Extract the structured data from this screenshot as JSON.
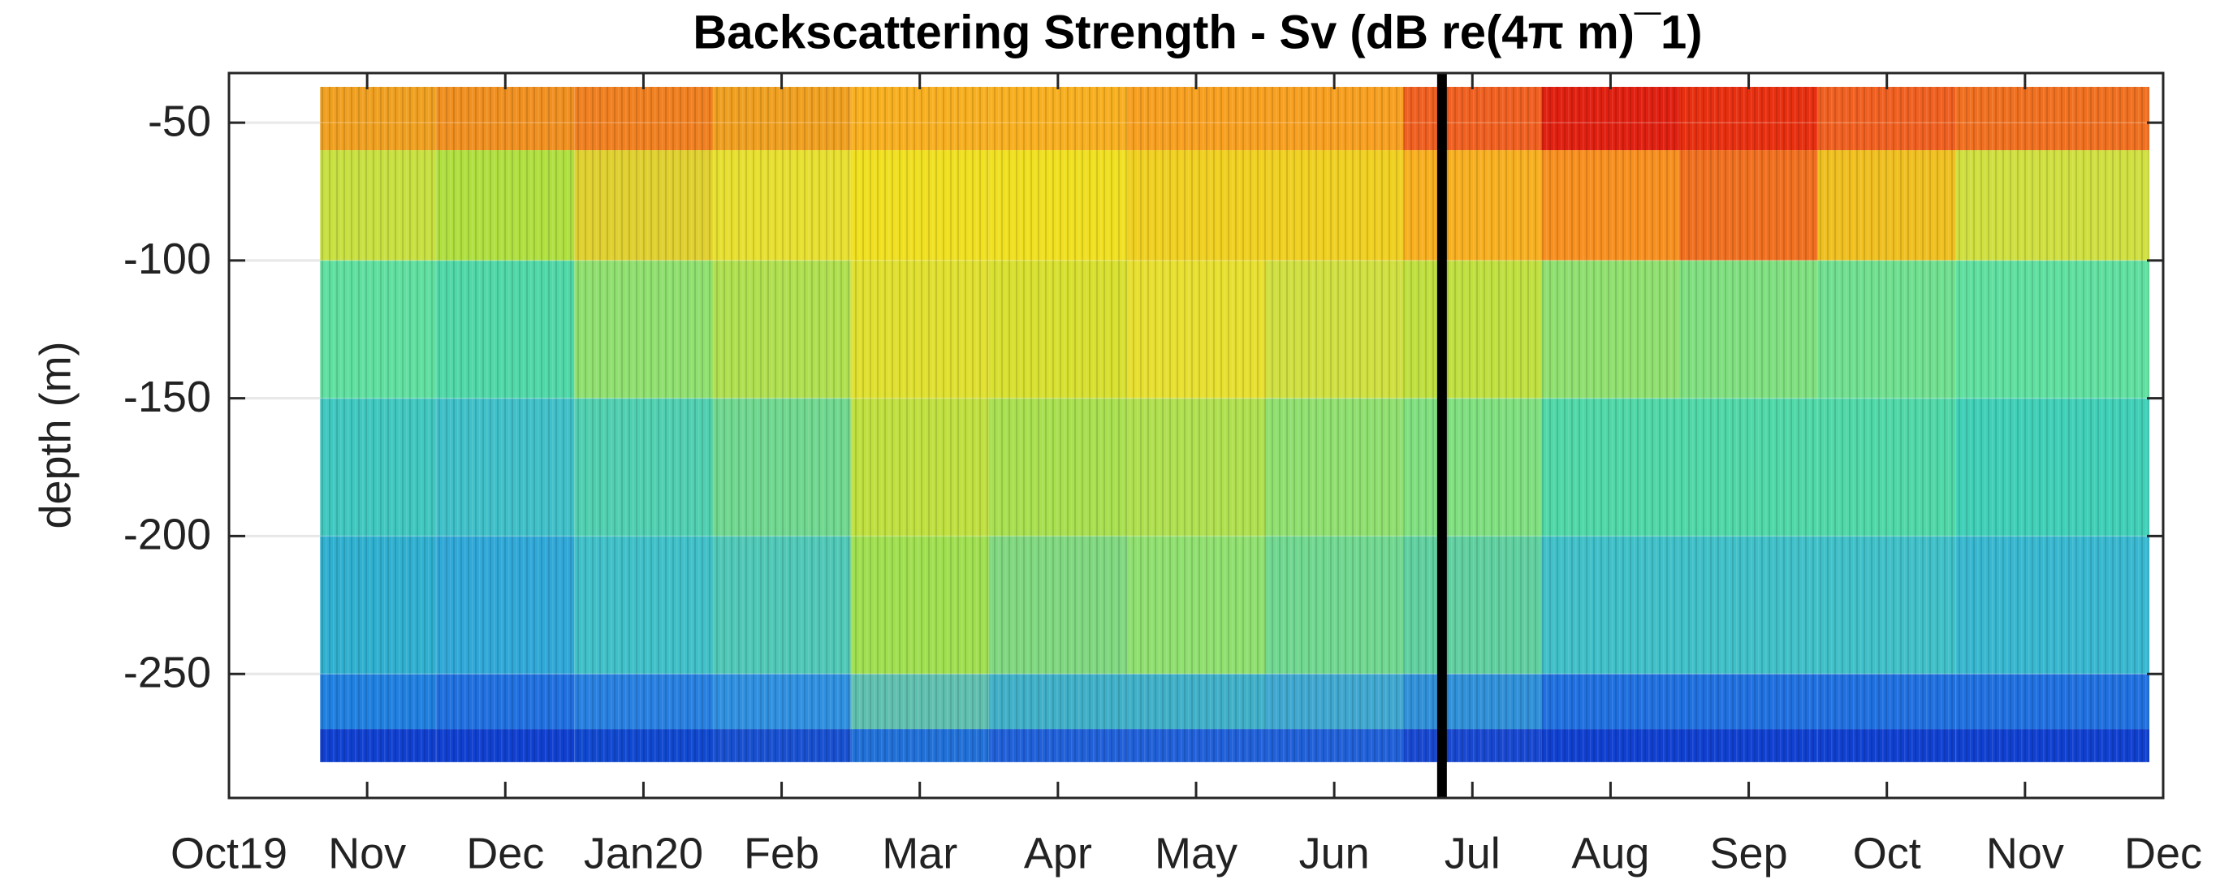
{
  "chart_data": {
    "type": "heatmap",
    "title": "Backscattering Strength - Sv (dB re(4π m)¯1)",
    "ylabel": "depth (m)",
    "xlim": [
      0,
      14
    ],
    "xticks": [
      {
        "value": 0,
        "label": "Oct19"
      },
      {
        "value": 1,
        "label": "Nov"
      },
      {
        "value": 2,
        "label": "Dec"
      },
      {
        "value": 3,
        "label": "Jan20"
      },
      {
        "value": 4,
        "label": "Feb"
      },
      {
        "value": 5,
        "label": "Mar"
      },
      {
        "value": 6,
        "label": "Apr"
      },
      {
        "value": 7,
        "label": "May"
      },
      {
        "value": 8,
        "label": "Jun"
      },
      {
        "value": 9,
        "label": "Jul"
      },
      {
        "value": 10,
        "label": "Aug"
      },
      {
        "value": 11,
        "label": "Sep"
      },
      {
        "value": 12,
        "label": "Oct"
      },
      {
        "value": 13,
        "label": "Nov"
      },
      {
        "value": 14,
        "label": "Dec"
      }
    ],
    "ylim": [
      -295,
      -32
    ],
    "yticks": [
      -250,
      -200,
      -150,
      -100,
      -50
    ],
    "grid": true,
    "x_edges": [
      0.66,
      1.5,
      2.5,
      3.5,
      4.5,
      5.5,
      6.5,
      7.5,
      8.5,
      9.5,
      10.5,
      11.5,
      12.5,
      13.9
    ],
    "y_edges": [
      -37,
      -60,
      -100,
      -150,
      -200,
      -250,
      -270,
      -282
    ],
    "cell_colors": [
      [
        "#f0a020",
        "#c8e040",
        "#60e0a0",
        "#40c8c0",
        "#30b0d0",
        "#2080e0",
        "#1040d0"
      ],
      [
        "#f09020",
        "#b0e040",
        "#50d8a8",
        "#40c0c8",
        "#30a8d8",
        "#2070e0",
        "#1040d0"
      ],
      [
        "#f08020",
        "#e0d030",
        "#90e070",
        "#50d0b0",
        "#40c0c8",
        "#2880e0",
        "#1048d0"
      ],
      [
        "#f0a020",
        "#e8e030",
        "#b0e050",
        "#70d890",
        "#50c8b8",
        "#3090e0",
        "#1850d0"
      ],
      [
        "#f8b020",
        "#f0e020",
        "#e0e030",
        "#c0e040",
        "#a0e050",
        "#60c0b0",
        "#2070d8"
      ],
      [
        "#f8b020",
        "#f0e020",
        "#d8e030",
        "#a8e050",
        "#80d880",
        "#40b0c8",
        "#2060d8"
      ],
      [
        "#f8a020",
        "#f0d020",
        "#e8e030",
        "#b0e050",
        "#90e070",
        "#40b0c8",
        "#2060d8"
      ],
      [
        "#f8a020",
        "#f0d020",
        "#d0e040",
        "#90e070",
        "#70d890",
        "#40a8d0",
        "#2060d8"
      ],
      [
        "#f06020",
        "#f8b020",
        "#c0e040",
        "#80e080",
        "#60d0a0",
        "#3090d8",
        "#1848d0"
      ],
      [
        "#e02010",
        "#f89020",
        "#90e070",
        "#50d8a8",
        "#40c0c8",
        "#2070e0",
        "#1040d0"
      ],
      [
        "#e83010",
        "#f07020",
        "#80e080",
        "#50d8a8",
        "#40c0c8",
        "#2070e0",
        "#1040d0"
      ],
      [
        "#f06020",
        "#f0c020",
        "#70e090",
        "#50d8a8",
        "#40c0c8",
        "#2070e0",
        "#1040d0"
      ],
      [
        "#f07020",
        "#d0e040",
        "#60e0a0",
        "#40d0b8",
        "#38b8d0",
        "#2070e0",
        "#1040d0"
      ]
    ],
    "vline": 8.78,
    "vline_color": "#000000"
  }
}
